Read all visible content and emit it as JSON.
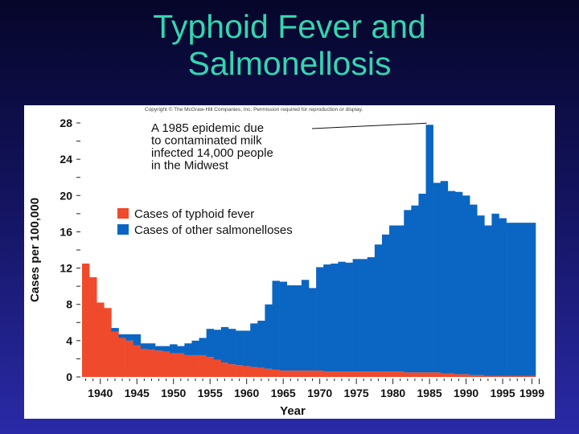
{
  "slide": {
    "title_line1": "Typhoid Fever and",
    "title_line2": "Salmonellosis"
  },
  "figure": {
    "copyright": "Copyright © The McGraw-Hill Companies, Inc. Permission required for reproduction or display."
  },
  "colors": {
    "typhoid": "#f04a2c",
    "salmonella": "#0a66c2",
    "title": "#33d6b0"
  },
  "chart_data": {
    "type": "bar",
    "stacked": true,
    "xlabel": "Year",
    "ylabel": "Cases per 100,000",
    "ylim": [
      0,
      28
    ],
    "yticks": [
      0,
      4,
      8,
      12,
      16,
      20,
      24,
      28
    ],
    "xticks": [
      1940,
      1945,
      1950,
      1955,
      1960,
      1965,
      1970,
      1975,
      1980,
      1985,
      1990,
      1995,
      1999
    ],
    "annotation": {
      "text": [
        "A 1985 epidemic due",
        "to contaminated milk",
        "infected 14,000 people",
        "in the Midwest"
      ],
      "points_to_year": 1985
    },
    "legend": {
      "position": "left-middle",
      "entries": [
        "Cases of typhoid fever",
        "Cases of other salmonelloses"
      ]
    },
    "years": [
      1938,
      1939,
      1940,
      1941,
      1942,
      1943,
      1944,
      1945,
      1946,
      1947,
      1948,
      1949,
      1950,
      1951,
      1952,
      1953,
      1954,
      1955,
      1956,
      1957,
      1958,
      1959,
      1960,
      1961,
      1962,
      1963,
      1964,
      1965,
      1966,
      1967,
      1968,
      1969,
      1970,
      1971,
      1972,
      1973,
      1974,
      1975,
      1976,
      1977,
      1978,
      1979,
      1980,
      1981,
      1982,
      1983,
      1984,
      1985,
      1986,
      1987,
      1988,
      1989,
      1990,
      1991,
      1992,
      1993,
      1994,
      1995,
      1996,
      1997,
      1998,
      1999
    ],
    "series": [
      {
        "name": "Cases of typhoid fever",
        "values": [
          12.5,
          11,
          8.2,
          7.6,
          5,
          4.3,
          4.0,
          3.5,
          3.1,
          3.0,
          2.9,
          2.8,
          2.6,
          2.6,
          2.4,
          2.4,
          2.4,
          2.2,
          1.9,
          1.6,
          1.4,
          1.3,
          1.2,
          1.1,
          1.0,
          0.9,
          0.8,
          0.7,
          0.7,
          0.7,
          0.7,
          0.7,
          0.7,
          0.6,
          0.6,
          0.6,
          0.6,
          0.6,
          0.6,
          0.6,
          0.6,
          0.6,
          0.6,
          0.6,
          0.5,
          0.5,
          0.5,
          0.5,
          0.5,
          0.4,
          0.4,
          0.3,
          0.3,
          0.2,
          0.2,
          0.1,
          0.1,
          0.1,
          0.1,
          0.1,
          0.1,
          0.1
        ]
      },
      {
        "name": "Cases of other salmonelloses",
        "values": [
          0,
          0,
          0,
          0,
          0.4,
          0.4,
          0.7,
          1.2,
          0.6,
          0.7,
          0.5,
          0.6,
          1.0,
          0.8,
          1.3,
          1.6,
          1.9,
          3.1,
          3.3,
          3.9,
          3.9,
          3.8,
          3.9,
          4.8,
          5.2,
          7.1,
          9.8,
          9.8,
          9.4,
          9.4,
          10.0,
          9.1,
          11.4,
          11.8,
          11.9,
          12.1,
          12.0,
          12.4,
          12.4,
          12.6,
          14.0,
          15.1,
          16.1,
          16.1,
          17.9,
          18.4,
          19.7,
          27.3,
          20.9,
          21.2,
          20.1,
          20.1,
          19.7,
          18.8,
          17.6,
          16.6,
          17.9,
          17.4,
          16.9,
          16.9,
          16.9,
          16.9
        ]
      }
    ]
  }
}
